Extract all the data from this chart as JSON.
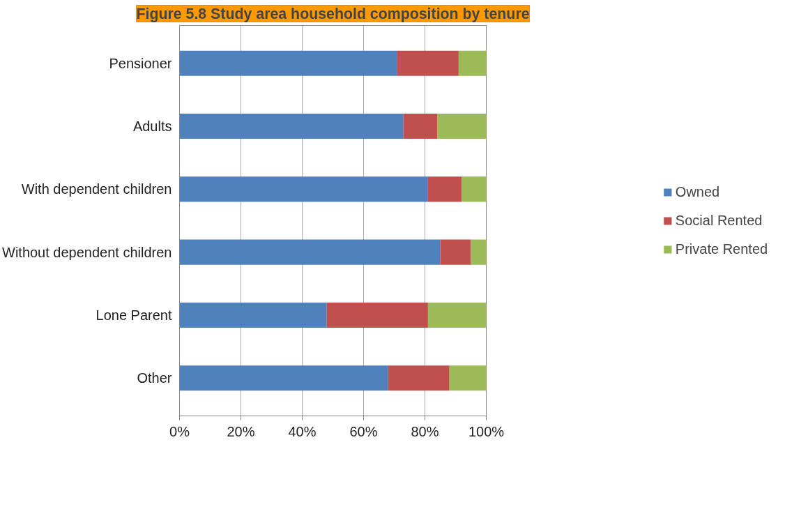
{
  "chart_data": {
    "type": "bar",
    "orientation": "horizontal",
    "stacked": true,
    "title": "Figure 5.8 Study area household composition by tenure",
    "categories": [
      "Pensioner",
      "Adults",
      "With dependent children",
      "Without dependent children",
      "Lone Parent",
      "Other"
    ],
    "series": [
      {
        "name": "Owned",
        "color": "#4f81bd",
        "values": [
          71,
          73,
          81,
          85,
          48,
          68
        ]
      },
      {
        "name": "Social Rented",
        "color": "#c0504d",
        "values": [
          20,
          11,
          11,
          10,
          33,
          20
        ]
      },
      {
        "name": "Private Rented",
        "color": "#9bbb59",
        "values": [
          9,
          16,
          8,
          5,
          19,
          12
        ]
      }
    ],
    "xlim": [
      0,
      100
    ],
    "xticks": [
      {
        "value": 0,
        "label": "0%"
      },
      {
        "value": 20,
        "label": "20%"
      },
      {
        "value": 40,
        "label": "40%"
      },
      {
        "value": 60,
        "label": "60%"
      },
      {
        "value": 80,
        "label": "80%"
      },
      {
        "value": 100,
        "label": "100%"
      }
    ],
    "grid": "x",
    "legend": "right"
  }
}
